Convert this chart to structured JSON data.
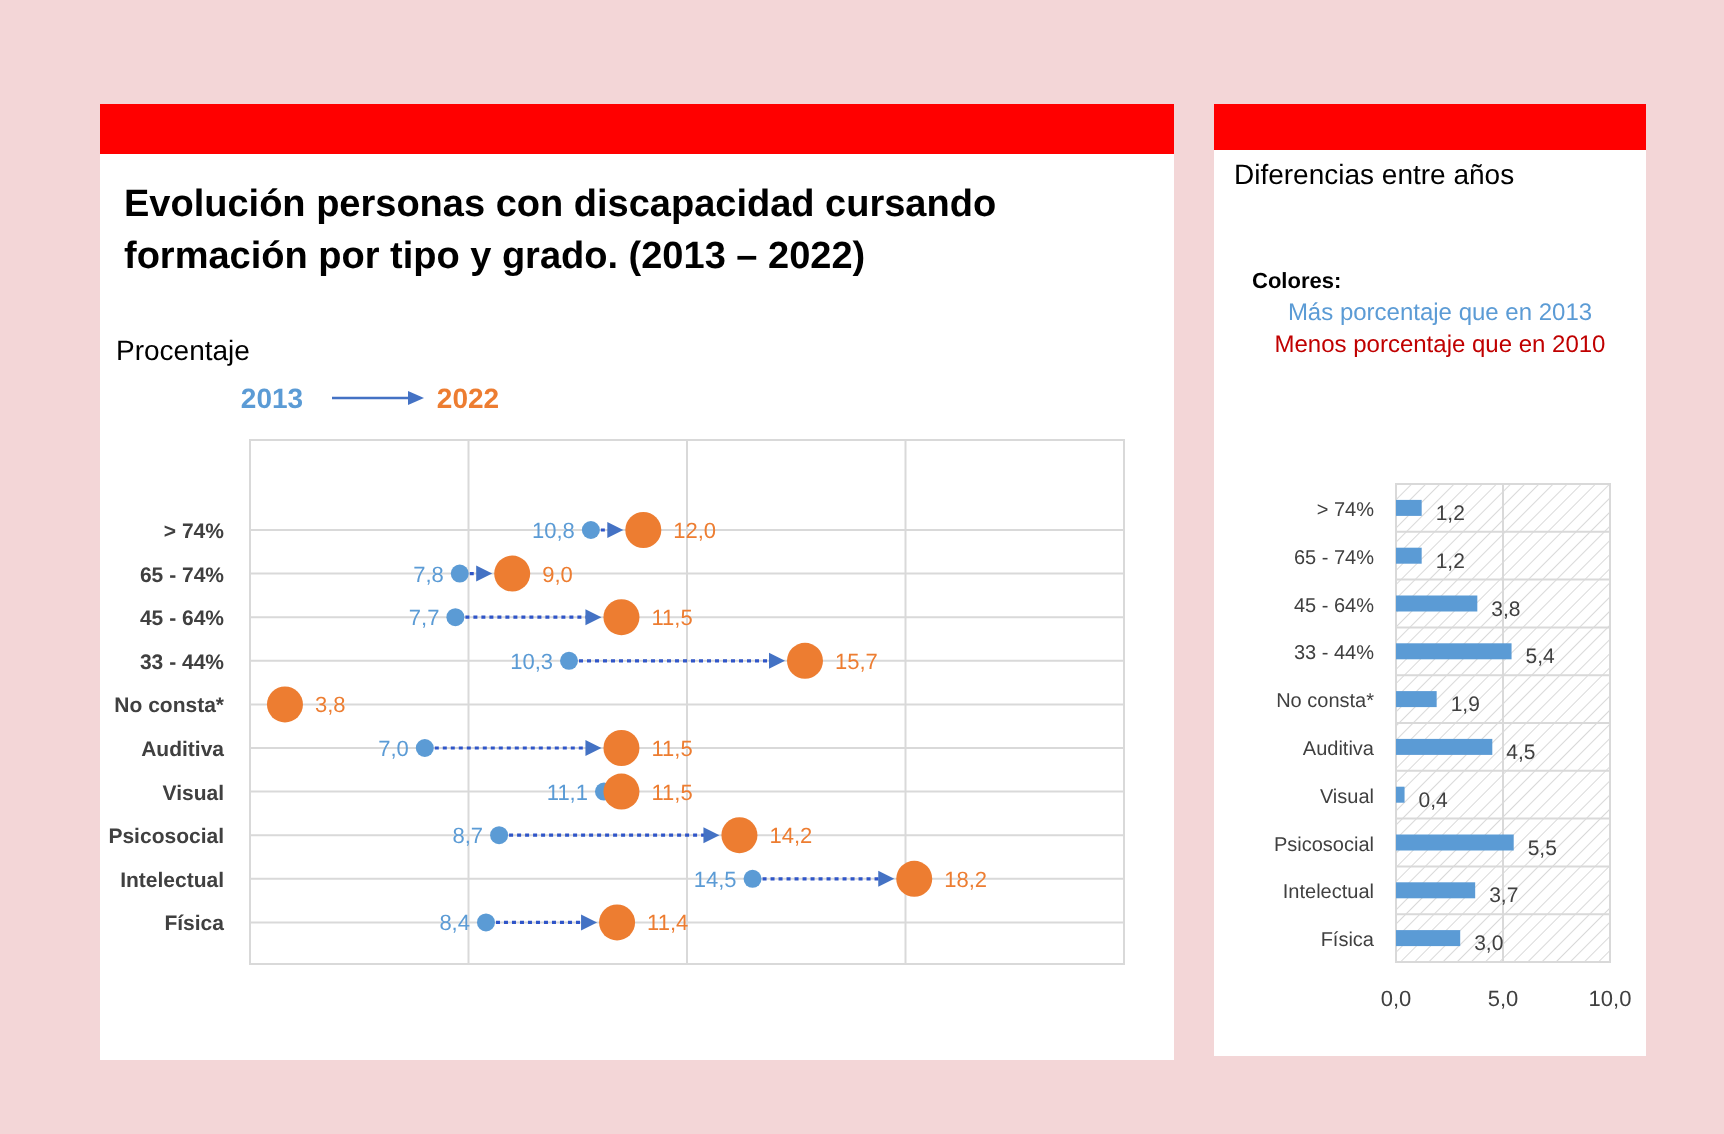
{
  "chart_data": [
    {
      "type": "scatter",
      "orientation": "horizontal",
      "title": "Evolución personas con discapacidad cursando formación por tipo y grado. (2013 – 2022)",
      "subtitle": "Procentaje",
      "categories": [
        "> 74%",
        "65 - 74%",
        "45 - 64%",
        "33 - 44%",
        "No consta*",
        "Auditiva",
        "Visual",
        "Psicosocial",
        "Intelectual",
        "Física"
      ],
      "series": [
        {
          "name": "2013",
          "color": "#5b9bd5",
          "values": [
            10.8,
            7.8,
            7.7,
            10.3,
            null,
            7.0,
            11.1,
            8.7,
            14.5,
            8.4
          ],
          "value_labels": [
            "10,8",
            "7,8",
            "7,7",
            "10,3",
            null,
            "7,0",
            "11,1",
            "8,7",
            "14,5",
            "8,4"
          ]
        },
        {
          "name": "2022",
          "color": "#ed7d31",
          "values": [
            12.0,
            9.0,
            11.5,
            15.7,
            3.8,
            11.5,
            11.5,
            14.2,
            18.2,
            11.4
          ],
          "value_labels": [
            "12,0",
            "9,0",
            "11,5",
            "15,7",
            "3,8",
            "11,5",
            "11,5",
            "14,2",
            "18,2",
            "11,4"
          ]
        }
      ],
      "xlim": [
        3,
        23
      ],
      "xticks": [
        {
          "value": 3,
          "label": null
        },
        {
          "value": 8,
          "label": null
        },
        {
          "value": 13,
          "label": null
        },
        {
          "value": 18,
          "label": null
        },
        {
          "value": 23,
          "label": null
        }
      ],
      "grid": true,
      "legend": "top left",
      "marker": "circle",
      "tick_labels": "y"
    },
    {
      "type": "bar",
      "orientation": "horizontal",
      "title": "Diferencias entre años",
      "annotations": [
        "Colores:",
        "Más porcentaje que en 2013",
        "Menos porcentaje que en 2010"
      ],
      "categories": [
        "> 74%",
        "65 - 74%",
        "45 - 64%",
        "33 - 44%",
        "No consta*",
        "Auditiva",
        "Visual",
        "Psicosocial",
        "Intelectual",
        "Física"
      ],
      "values": [
        1.2,
        1.2,
        3.8,
        5.4,
        1.9,
        4.5,
        0.4,
        5.5,
        3.7,
        3.0
      ],
      "color": "#5b9bd5",
      "value_labels": [
        "1,2",
        "1,2",
        "3,8",
        "5,4",
        "1,9",
        "4,5",
        "0,4",
        "5,5",
        "3,7",
        "3,0"
      ],
      "xlim": [
        0,
        10
      ],
      "xticks": [
        {
          "value": 0,
          "label": "0,0"
        },
        {
          "value": 5,
          "label": "5,0"
        },
        {
          "value": 10,
          "label": "10,0"
        }
      ],
      "grid": true
    }
  ]
}
